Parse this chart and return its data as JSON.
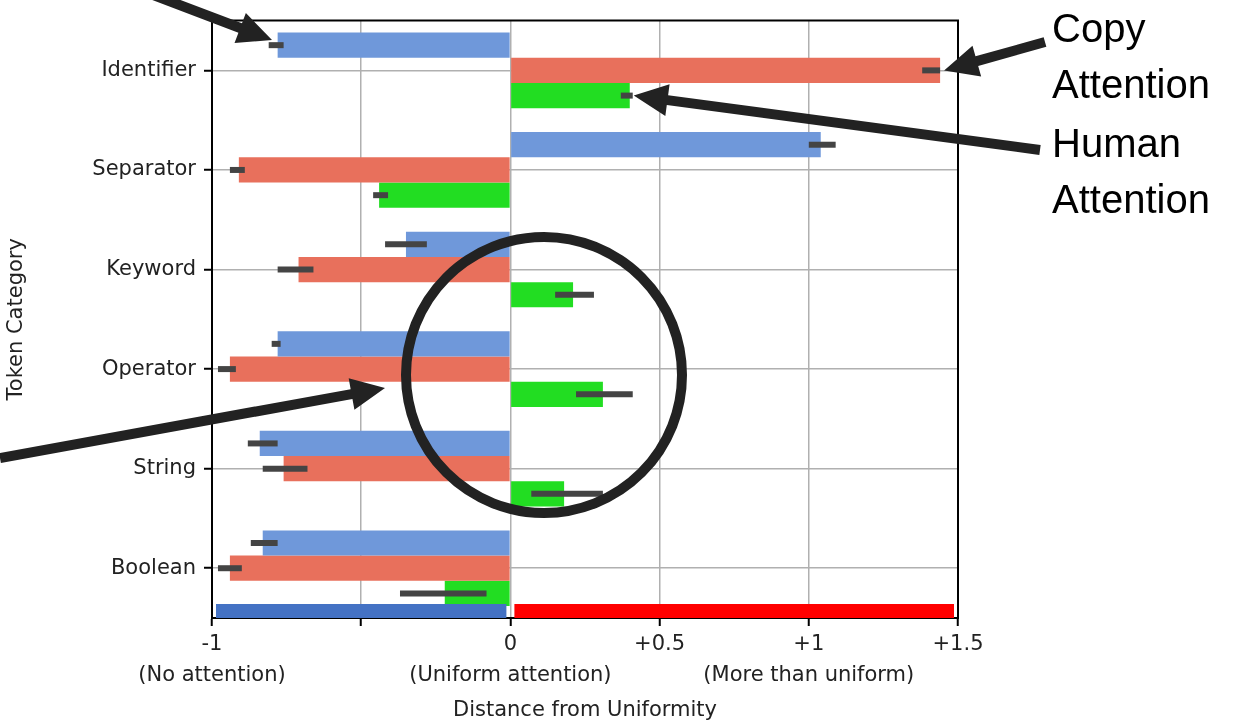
{
  "chart_data": {
    "type": "bar",
    "orientation": "horizontal",
    "xlabel": "Distance from Uniformity",
    "ylabel": "Token Category",
    "categories": [
      "Identifier",
      "Separator",
      "Keyword",
      "Operator",
      "String",
      "Boolean"
    ],
    "series": [
      {
        "color": "#6f98da",
        "values": [
          -0.78,
          1.04,
          -0.35,
          -0.78,
          -0.84,
          -0.83
        ],
        "errors": [
          [
            -0.81,
            -0.76
          ],
          [
            1.0,
            1.09
          ],
          [
            -0.42,
            -0.28
          ],
          [
            -0.8,
            -0.77
          ],
          [
            -0.88,
            -0.78
          ],
          [
            -0.87,
            -0.78
          ]
        ]
      },
      {
        "name": "Copy Attention",
        "color": "#e8705c",
        "values": [
          1.44,
          -0.91,
          -0.71,
          -0.94,
          -0.76,
          -0.94
        ],
        "errors": [
          [
            1.38,
            1.44
          ],
          [
            -0.94,
            -0.89
          ],
          [
            -0.78,
            -0.66
          ],
          [
            -0.98,
            -0.92
          ],
          [
            -0.83,
            -0.68
          ],
          [
            -0.98,
            -0.9
          ]
        ]
      },
      {
        "name": "Human Attention",
        "color": "#22dd22",
        "values": [
          0.4,
          -0.44,
          0.21,
          0.31,
          0.18,
          -0.22
        ],
        "errors": [
          [
            0.37,
            0.41
          ],
          [
            -0.46,
            -0.41
          ],
          [
            0.15,
            0.28
          ],
          [
            0.22,
            0.41
          ],
          [
            0.07,
            0.31
          ],
          [
            -0.37,
            -0.08
          ]
        ]
      }
    ],
    "xlim": [
      -1,
      1.5
    ],
    "xticks": [
      -1,
      {
        "value": -0.5,
        "label": null
      },
      0,
      {
        "value": 0.5,
        "label": "+0.5"
      },
      {
        "value": 1,
        "label": "+1"
      },
      {
        "value": 1.5,
        "label": "+1.5"
      }
    ],
    "grid": true,
    "annotations": [
      "(No attention)",
      "(Uniform attention)",
      "(More than uniform)"
    ]
  }
}
